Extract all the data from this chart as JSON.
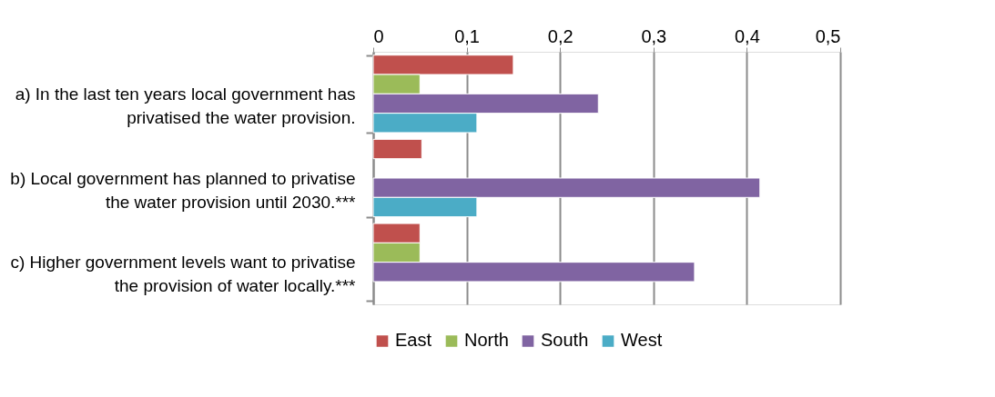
{
  "chart_data": {
    "type": "bar",
    "orientation": "horizontal",
    "categories": [
      "a) In the last ten years local government has privatised the water provision.",
      "b) Local government has planned to privatise the water provision until 2030.***",
      "c) Higher government levels want to privatise the provision of water locally.***"
    ],
    "series": [
      {
        "name": "East",
        "color": "#c0504d",
        "values": [
          0.15,
          0.052,
          0.05
        ]
      },
      {
        "name": "North",
        "color": "#9bbb59",
        "values": [
          0.05,
          null,
          0.05
        ]
      },
      {
        "name": "South",
        "color": "#8064a2",
        "values": [
          0.241,
          0.414,
          0.344
        ]
      },
      {
        "name": "West",
        "color": "#4bacc6",
        "values": [
          0.111,
          0.111,
          null
        ]
      }
    ],
    "xlim": [
      0,
      0.5
    ],
    "xticks": [
      {
        "value": 0,
        "label": "0"
      },
      {
        "value": 0.1,
        "label": "0,1"
      },
      {
        "value": 0.2,
        "label": "0,2"
      },
      {
        "value": 0.3,
        "label": "0,3"
      },
      {
        "value": 0.4,
        "label": "0,4"
      },
      {
        "value": 0.5,
        "label": "0,5"
      }
    ],
    "grid": "x",
    "legend": "bottom"
  }
}
